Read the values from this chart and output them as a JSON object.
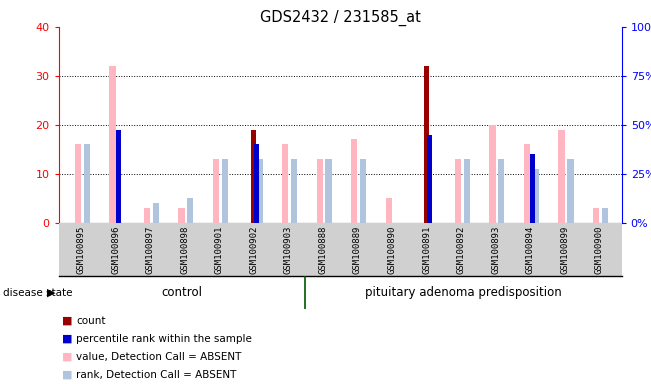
{
  "title": "GDS2432 / 231585_at",
  "samples": [
    "GSM100895",
    "GSM100896",
    "GSM100897",
    "GSM100898",
    "GSM100901",
    "GSM100902",
    "GSM100903",
    "GSM100888",
    "GSM100889",
    "GSM100890",
    "GSM100891",
    "GSM100892",
    "GSM100893",
    "GSM100894",
    "GSM100899",
    "GSM100900"
  ],
  "n_control": 7,
  "n_adenoma": 9,
  "count": [
    0,
    0,
    0,
    0,
    0,
    19,
    0,
    0,
    0,
    0,
    32,
    0,
    0,
    0,
    0,
    0
  ],
  "percentile_rank": [
    0,
    19,
    0,
    0,
    0,
    16,
    0,
    0,
    0,
    0,
    18,
    0,
    0,
    14,
    0,
    0
  ],
  "value_absent": [
    16,
    32,
    3,
    3,
    13,
    0,
    16,
    13,
    17,
    5,
    0,
    13,
    20,
    16,
    19,
    3
  ],
  "rank_absent": [
    16,
    0,
    4,
    5,
    13,
    13,
    13,
    13,
    13,
    0,
    0,
    13,
    13,
    11,
    13,
    3
  ],
  "ylim_left": [
    0,
    40
  ],
  "ylim_right": [
    0,
    100
  ],
  "yticks_left": [
    0,
    10,
    20,
    30,
    40
  ],
  "yticks_right": [
    0,
    25,
    50,
    75,
    100
  ],
  "yticklabels_right": [
    "0%",
    "25%",
    "50%",
    "75%",
    "100%"
  ],
  "count_color": "#990000",
  "percentile_color": "#0000CC",
  "value_absent_color": "#FFB6C1",
  "rank_absent_color": "#B0C4DE",
  "control_color": "#98ee90",
  "adenoma_color": "#98ee90",
  "group_border_color": "#005500",
  "background_color": "#ffffff",
  "bar_width": 0.15
}
